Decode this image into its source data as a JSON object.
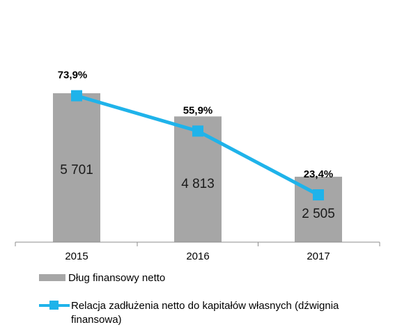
{
  "chart_data": {
    "type": "bar",
    "categories": [
      "2015",
      "2016",
      "2017"
    ],
    "series": [
      {
        "name": "Dług finansowy netto",
        "type": "bar",
        "values": [
          5701,
          4813,
          2505
        ],
        "labels": [
          "5 701",
          "4 813",
          "2 505"
        ],
        "color": "#a6a6a6"
      },
      {
        "name": "Relacja zadłużenia netto do kapitałów własnych (dźwignia finansowa)",
        "type": "line",
        "values": [
          73.9,
          55.9,
          23.4
        ],
        "labels": [
          "73,9%",
          "55,9%",
          "23,4%"
        ],
        "color": "#1fb3ea"
      }
    ],
    "bar_axis_max": 8000,
    "line_axis_range": [
      0,
      100
    ],
    "grid": false,
    "legend_position": "bottom"
  }
}
